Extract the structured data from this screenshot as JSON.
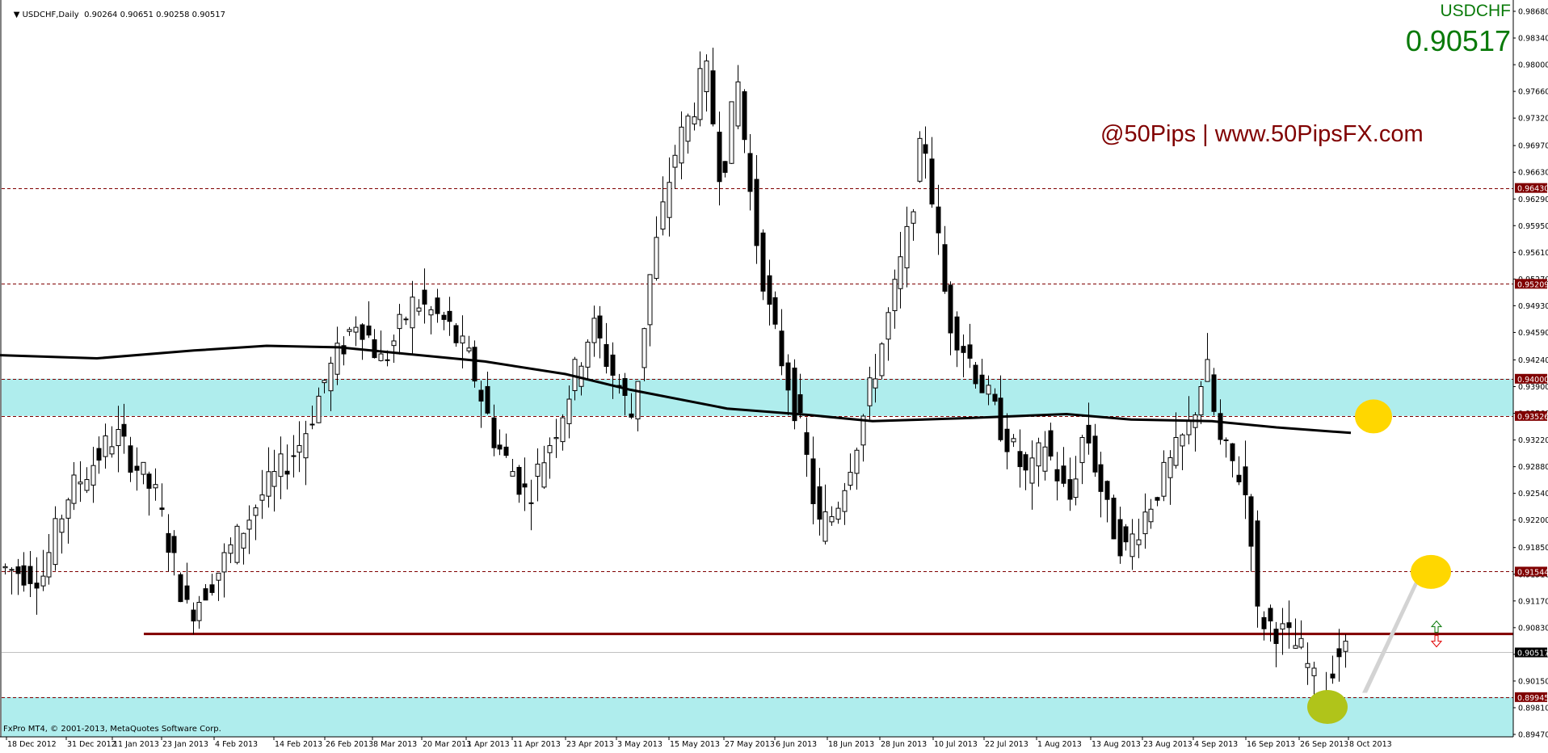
{
  "header": {
    "symbol_timeframe": "USDCHF,Daily",
    "ohlc": "0.90264 0.90651 0.90258 0.90517",
    "dropdown_icon": "triangle-down-icon"
  },
  "overlay": {
    "symbol": "USDCHF",
    "bid": "0.90517",
    "watermark": "@50Pips | www.50PipsFX.com",
    "copyright": "FxPro MT4, © 2001-2013, MetaQuotes Software Corp."
  },
  "colors": {
    "zone_fill": "#afeded",
    "level_line": "#800000",
    "support_line": "#800000",
    "bid_line": "#c0c0c0",
    "ma_line": "#000000",
    "target_circle": "#ffd700",
    "low_circle": "#b0c41a",
    "text_green": "#0a7a0a",
    "watermark": "#800000"
  },
  "chart_data": {
    "type": "candlestick",
    "title": "USDCHF,Daily",
    "xlabel": "",
    "ylabel": "",
    "ylim": [
      0.893,
      0.9885
    ],
    "grid": false,
    "x_ticks": [
      "18 Dec 2012",
      "31 Dec 2012",
      "11 Jan 2013",
      "23 Jan 2013",
      "4 Feb 2013",
      "14 Feb 2013",
      "26 Feb 2013",
      "8 Mar 2013",
      "20 Mar 2013",
      "1 Apr 2013",
      "11 Apr 2013",
      "23 Apr 2013",
      "3 May 2013",
      "15 May 2013",
      "27 May 2013",
      "6 Jun 2013",
      "18 Jun 2013",
      "28 Jun 2013",
      "10 Jul 2013",
      "22 Jul 2013",
      "1 Aug 2013",
      "13 Aug 2013",
      "23 Aug 2013",
      "4 Sep 2013",
      "16 Sep 2013",
      "26 Sep 2013",
      "8 Oct 2013"
    ],
    "y_ticks": [
      "0.98680",
      "0.98340",
      "0.98000",
      "0.97660",
      "0.97320",
      "0.96970",
      "0.96630",
      "0.96290",
      "0.95950",
      "0.95610",
      "0.95270",
      "0.94930",
      "0.94590",
      "0.94240",
      "0.93900",
      "0.93560",
      "0.93220",
      "0.92880",
      "0.92540",
      "0.92200",
      "0.91850",
      "0.91510",
      "0.91170",
      "0.90830",
      "0.90490",
      "0.90150",
      "0.89810",
      "0.89470"
    ],
    "level_labels": [
      {
        "value": 0.9643,
        "label": "0.96430",
        "style": "dashed"
      },
      {
        "value": 0.95209,
        "label": "0.95209",
        "style": "dashed"
      },
      {
        "value": 0.94,
        "label": "0.94000",
        "style": "dashed"
      },
      {
        "value": 0.93526,
        "label": "0.93526",
        "style": "dashed"
      },
      {
        "value": 0.91544,
        "label": "0.91544",
        "style": "dashed"
      },
      {
        "value": 0.89945,
        "label": "0.89945",
        "style": "dashed"
      }
    ],
    "current_price": {
      "value": 0.90517,
      "label": "0.90517"
    },
    "support_line": {
      "value": 0.9075,
      "from_date": "1 Feb 2013"
    },
    "zones": [
      {
        "from": 0.93526,
        "to": 0.94
      },
      {
        "from": 0.893,
        "to": 0.89945
      }
    ],
    "moving_average": {
      "points": [
        [
          0,
          0.943
        ],
        [
          120,
          0.9426
        ],
        [
          240,
          0.9436
        ],
        [
          330,
          0.9442
        ],
        [
          420,
          0.944
        ],
        [
          500,
          0.9432
        ],
        [
          600,
          0.9422
        ],
        [
          700,
          0.9406
        ],
        [
          780,
          0.9386
        ],
        [
          900,
          0.9362
        ],
        [
          1000,
          0.9354
        ],
        [
          1080,
          0.9346
        ],
        [
          1200,
          0.935
        ],
        [
          1320,
          0.9355
        ],
        [
          1400,
          0.9348
        ],
        [
          1500,
          0.9346
        ],
        [
          1580,
          0.9338
        ],
        [
          1672,
          0.9331
        ]
      ]
    },
    "candles_approx": "~215 daily OHLC bars from 18 Dec 2012 to 10 Oct 2013; high ~0.9840 (late May), second peak ~0.9750 (early Jul), low ~0.8975 (late Sep), last close 0.90517",
    "annotations": [
      {
        "type": "circle",
        "color": "#ffd700",
        "at_price": 0.9352,
        "desc": "target near MA"
      },
      {
        "type": "circle",
        "color": "#ffd700",
        "at_price": 0.9154,
        "desc": "target at 0.91544"
      },
      {
        "type": "circle",
        "color": "#b0c41a",
        "at_price": 0.8985,
        "desc": "recent low"
      },
      {
        "type": "trendline",
        "color": "#d3d3d3",
        "desc": "projection from low toward 0.91544"
      },
      {
        "type": "arrow-up-down",
        "desc": "up (green) / down (red) arrows at support"
      },
      {
        "type": "text",
        "value": "@50Pips | www.50PipsFX.com"
      }
    ]
  }
}
